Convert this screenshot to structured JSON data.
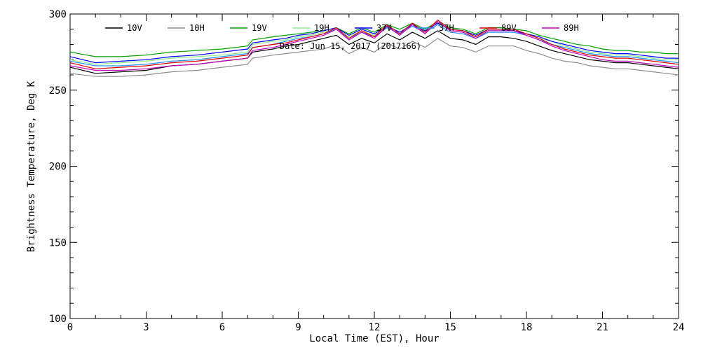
{
  "chart_data": {
    "type": "line",
    "xlabel": "Local Time (EST), Hour",
    "ylabel": "Brightness Temperature, Deg K",
    "annotation": "Date: Jun 15, 2017 (2017166)",
    "xlim": [
      0,
      24
    ],
    "ylim": [
      100,
      300
    ],
    "x_major_ticks": [
      0,
      3,
      6,
      9,
      12,
      15,
      18,
      21,
      24
    ],
    "x_minor_step": 1,
    "y_major_ticks": [
      100,
      150,
      200,
      250,
      300
    ],
    "y_minor_step": 10,
    "grid": false,
    "legend_position": "top",
    "x": [
      0,
      1,
      2,
      3,
      4,
      5,
      6,
      7,
      7.2,
      8,
      8.5,
      9,
      9.5,
      10,
      10.5,
      11,
      11.5,
      12,
      12.5,
      13,
      13.5,
      14,
      14.5,
      15,
      15.5,
      16,
      16.5,
      17,
      17.5,
      18,
      18.5,
      19,
      19.5,
      20,
      20.5,
      21,
      21.5,
      22,
      22.5,
      23,
      23.5,
      24
    ],
    "series": [
      {
        "name": "10V",
        "color": "#000000",
        "values": [
          265,
          261,
          262,
          263,
          266,
          267,
          269,
          271,
          275,
          277,
          279,
          280,
          282,
          284,
          286,
          280,
          284,
          281,
          287,
          283,
          288,
          284,
          289,
          284,
          283,
          280,
          285,
          285,
          284,
          282,
          279,
          276,
          274,
          272,
          270,
          269,
          268,
          268,
          267,
          266,
          265,
          264
        ]
      },
      {
        "name": "10H",
        "color": "#8c8c8c",
        "values": [
          261,
          259,
          259,
          260,
          262,
          263,
          265,
          267,
          271,
          273,
          274,
          275,
          276,
          277,
          280,
          274,
          278,
          275,
          281,
          277,
          282,
          278,
          284,
          279,
          278,
          275,
          279,
          279,
          279,
          276,
          274,
          271,
          269,
          268,
          266,
          265,
          264,
          264,
          263,
          262,
          261,
          260
        ]
      },
      {
        "name": "19V",
        "color": "#00a000",
        "values": [
          275,
          272,
          272,
          273,
          275,
          276,
          277,
          279,
          283,
          285,
          286,
          287,
          288,
          289,
          291,
          287,
          291,
          288,
          293,
          290,
          294,
          290,
          295,
          291,
          290,
          287,
          291,
          291,
          290,
          289,
          286,
          284,
          282,
          280,
          279,
          277,
          276,
          276,
          275,
          275,
          274,
          274
        ]
      },
      {
        "name": "19H",
        "color": "#90ee90",
        "values": [
          270,
          267,
          268,
          269,
          271,
          272,
          273,
          275,
          280,
          282,
          283,
          285,
          286,
          288,
          290,
          285,
          289,
          286,
          292,
          288,
          293,
          289,
          294,
          289,
          288,
          285,
          289,
          289,
          289,
          287,
          284,
          282,
          279,
          277,
          275,
          274,
          273,
          273,
          272,
          271,
          270,
          270
        ]
      },
      {
        "name": "37V",
        "color": "#0000ff",
        "values": [
          272,
          268,
          269,
          270,
          272,
          273,
          275,
          277,
          281,
          283,
          284,
          286,
          287,
          289,
          291,
          286,
          290,
          287,
          292,
          288,
          293,
          289,
          294,
          290,
          289,
          286,
          290,
          290,
          289,
          287,
          285,
          282,
          280,
          278,
          276,
          275,
          274,
          274,
          273,
          272,
          271,
          271
        ]
      },
      {
        "name": "37H",
        "color": "#1e90ff",
        "values": [
          269,
          266,
          266,
          267,
          269,
          270,
          272,
          274,
          278,
          280,
          282,
          284,
          285,
          287,
          290,
          284,
          288,
          285,
          291,
          287,
          292,
          288,
          293,
          288,
          287,
          284,
          288,
          288,
          288,
          286,
          283,
          280,
          278,
          276,
          274,
          273,
          272,
          272,
          271,
          270,
          269,
          268
        ]
      },
      {
        "name": "89V",
        "color": "#e00000",
        "values": [
          268,
          264,
          265,
          266,
          268,
          269,
          271,
          273,
          278,
          280,
          281,
          283,
          285,
          287,
          291,
          284,
          289,
          285,
          293,
          287,
          294,
          288,
          296,
          290,
          289,
          285,
          290,
          290,
          290,
          287,
          284,
          280,
          277,
          275,
          273,
          272,
          271,
          271,
          270,
          269,
          268,
          267
        ]
      },
      {
        "name": "89H",
        "color": "#c000c0",
        "values": [
          266,
          263,
          263,
          264,
          266,
          267,
          269,
          271,
          276,
          278,
          280,
          282,
          284,
          286,
          290,
          283,
          288,
          284,
          292,
          286,
          293,
          287,
          295,
          289,
          288,
          284,
          289,
          289,
          289,
          286,
          283,
          279,
          276,
          274,
          272,
          270,
          269,
          269,
          268,
          267,
          266,
          265
        ]
      }
    ]
  }
}
